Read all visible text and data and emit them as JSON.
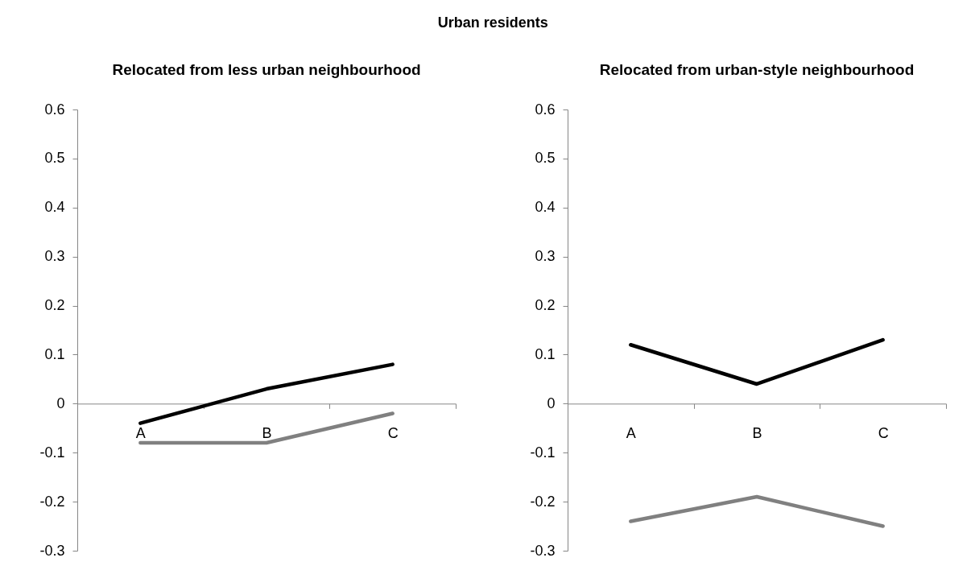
{
  "chart_data": [
    {
      "type": "line",
      "title": "Relocated from less urban neighbourhood",
      "annotations": [
        "Urban residents"
      ],
      "categories": [
        "A",
        "B",
        "C"
      ],
      "series": [
        {
          "color": "#000000",
          "values": [
            -0.04,
            0.03,
            0.08
          ]
        },
        {
          "color": "#808080",
          "values": [
            -0.08,
            -0.08,
            -0.02
          ]
        }
      ],
      "ylim": [
        -0.3,
        0.6
      ],
      "yticks": [
        -0.3,
        -0.2,
        -0.1,
        0,
        0.1,
        0.2,
        0.3,
        0.4,
        0.5,
        0.6
      ],
      "grid": false,
      "legend": false,
      "marker": "none",
      "line_style": "solid"
    },
    {
      "type": "line",
      "title": "Relocated from urban-style neighbourhood",
      "categories": [
        "A",
        "B",
        "C"
      ],
      "series": [
        {
          "color": "#000000",
          "values": [
            0.12,
            0.04,
            0.13
          ]
        },
        {
          "color": "#808080",
          "values": [
            -0.24,
            -0.19,
            -0.25
          ]
        }
      ],
      "ylim": [
        -0.3,
        0.6
      ],
      "yticks": [
        -0.3,
        -0.2,
        -0.1,
        0,
        0.1,
        0.2,
        0.3,
        0.4,
        0.5,
        0.6
      ],
      "grid": false,
      "legend": false,
      "marker": "none",
      "line_style": "solid"
    }
  ]
}
